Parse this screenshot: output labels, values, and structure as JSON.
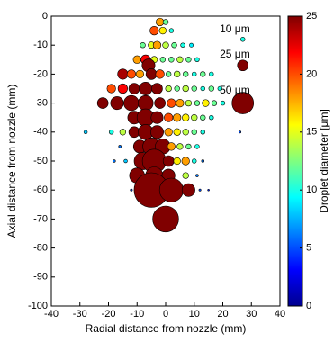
{
  "chart_data": {
    "type": "scatter",
    "xlabel": "Radial distance from nozzle (mm)",
    "ylabel": "Axial distance from nozzle (mm)",
    "xlim": [
      -40,
      40
    ],
    "xticks": [
      -40,
      -30,
      -20,
      -10,
      0,
      10,
      20,
      30,
      40
    ],
    "ylim": [
      -100,
      0
    ],
    "yticks": [
      -100,
      -90,
      -80,
      -70,
      -60,
      -50,
      -40,
      -30,
      -20,
      -10,
      0
    ],
    "grid": false,
    "x": [
      -2,
      0,
      -4,
      -1,
      2,
      -8,
      -5,
      -3,
      0,
      3,
      6,
      9,
      -10,
      -7,
      -4,
      -1,
      2,
      5,
      8,
      11,
      -6,
      -15,
      -12,
      -9,
      -5,
      -2,
      1,
      4,
      7,
      10,
      13,
      16,
      -19,
      -15,
      -11,
      -7,
      -3,
      1,
      4,
      7,
      10,
      13,
      16,
      19,
      -22,
      -17,
      -12,
      -7,
      -2,
      2,
      5,
      8,
      11,
      14,
      17,
      20,
      -11,
      -7,
      -3,
      1,
      4,
      7,
      10,
      13,
      16,
      -28,
      -19,
      -15,
      -11,
      -7,
      -3,
      1,
      4,
      7,
      10,
      13,
      26,
      -16,
      -9,
      -5,
      -1,
      2,
      5,
      8,
      11,
      -18,
      -14,
      -8,
      -4,
      1,
      4,
      7,
      10,
      13,
      -10,
      -4,
      1,
      7,
      11,
      -12,
      -5,
      2,
      8,
      12,
      15,
      0
    ],
    "y": [
      -2,
      -2,
      -5,
      -5,
      -5,
      -10,
      -10,
      -10,
      -10,
      -10,
      -10,
      -10,
      -15,
      -15,
      -15,
      -15,
      -15,
      -15,
      -15,
      -15,
      -17,
      -20,
      -20,
      -20,
      -20,
      -20,
      -20,
      -20,
      -20,
      -20,
      -20,
      -20,
      -25,
      -25,
      -25,
      -25,
      -25,
      -25,
      -25,
      -25,
      -25,
      -25,
      -25,
      -25,
      -30,
      -30,
      -30,
      -30,
      -30,
      -30,
      -30,
      -30,
      -30,
      -30,
      -30,
      -30,
      -35,
      -35,
      -35,
      -35,
      -35,
      -35,
      -35,
      -35,
      -35,
      -40,
      -40,
      -40,
      -40,
      -40,
      -40,
      -40,
      -40,
      -40,
      -40,
      -40,
      -40,
      -45,
      -45,
      -45,
      -45,
      -45,
      -45,
      -45,
      -45,
      -50,
      -50,
      -50,
      -50,
      -50,
      -50,
      -50,
      -50,
      -50,
      -55,
      -55,
      -55,
      -55,
      -55,
      -60,
      -60,
      -60,
      -60,
      -60,
      -60,
      -70
    ],
    "sizes": [
      18,
      12,
      20,
      16,
      10,
      12,
      15,
      18,
      14,
      12,
      10,
      9,
      18,
      22,
      15,
      12,
      12,
      14,
      12,
      10,
      30,
      24,
      20,
      18,
      25,
      20,
      12,
      14,
      12,
      10,
      12,
      10,
      20,
      22,
      25,
      30,
      25,
      14,
      12,
      14,
      12,
      10,
      12,
      10,
      25,
      30,
      35,
      35,
      25,
      20,
      18,
      14,
      12,
      16,
      12,
      10,
      30,
      40,
      28,
      20,
      18,
      16,
      14,
      12,
      10,
      8,
      10,
      14,
      25,
      35,
      30,
      18,
      16,
      14,
      12,
      10,
      5,
      6,
      30,
      40,
      35,
      18,
      14,
      12,
      10,
      6,
      8,
      40,
      55,
      25,
      16,
      18,
      10,
      6,
      35,
      40,
      30,
      14,
      6,
      5,
      80,
      55,
      30,
      5,
      4,
      60
    ],
    "size_legend": {
      "labels": [
        "10 μm",
        "25 μm",
        "50 μm"
      ],
      "values": [
        10,
        25,
        50
      ]
    },
    "colorbar": {
      "label": "Droplet diameter [μm]",
      "lim": [
        0,
        25
      ],
      "ticks": [
        0,
        5,
        10,
        15,
        20,
        25
      ]
    }
  }
}
